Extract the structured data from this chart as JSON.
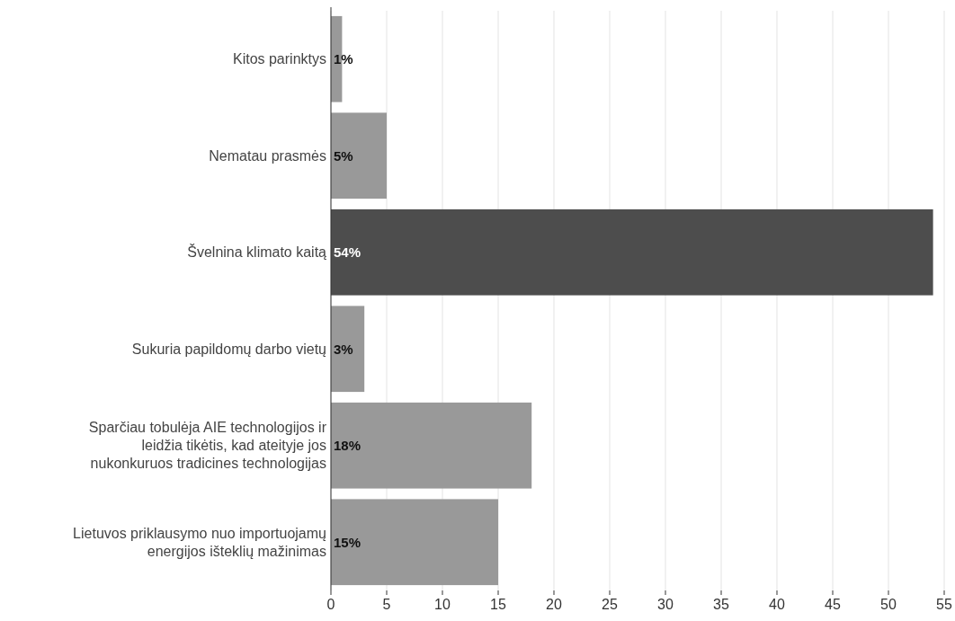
{
  "chart_data": {
    "type": "bar",
    "orientation": "horizontal",
    "categories": [
      "Kitos parinktys",
      "Nematau prasmės",
      "Švelnina klimato kaitą",
      "Sukuria papildomų darbo vietų",
      "Sparčiau tobulėja AIE technologijos ir leidžia tikėtis, kad ateityje jos nukonkuruos tradicines technologijas",
      "Lietuvos priklausymo nuo importuojamų energijos išteklių mažinimas"
    ],
    "values": [
      1,
      5,
      54,
      3,
      18,
      15
    ],
    "value_labels": [
      "1%",
      "5%",
      "54%",
      "3%",
      "18%",
      "15%"
    ],
    "colors": [
      "#999999",
      "#999999",
      "#4d4d4d",
      "#999999",
      "#999999",
      "#999999"
    ],
    "xlim": [
      0,
      55
    ],
    "xticks": [
      0,
      5,
      10,
      15,
      20,
      25,
      30,
      35,
      40,
      45,
      50,
      55
    ],
    "grid": "x"
  }
}
